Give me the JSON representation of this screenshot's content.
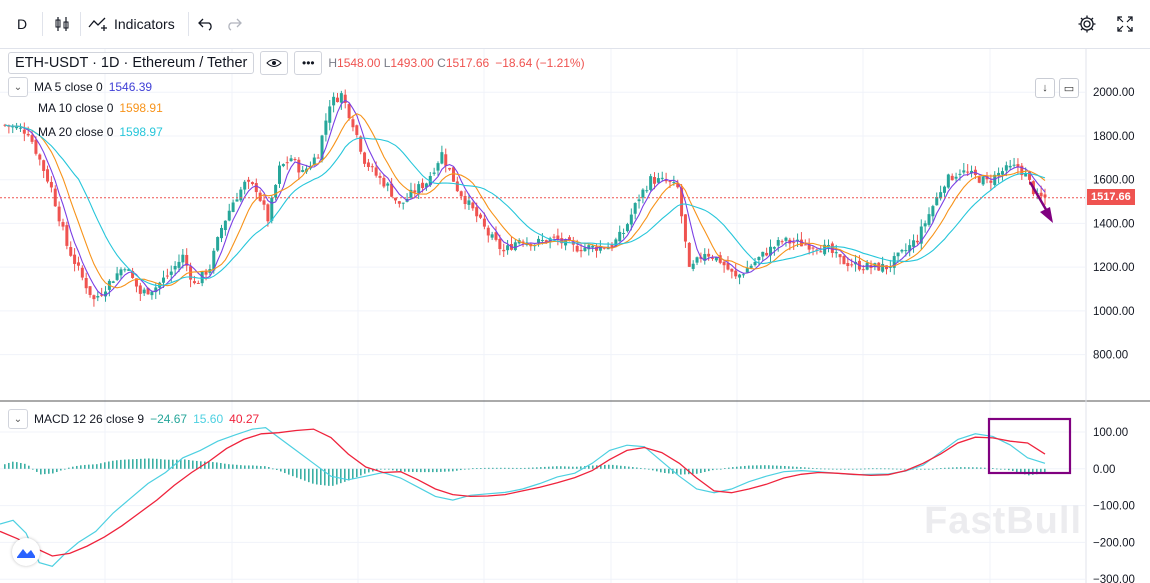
{
  "toolbar": {
    "interval": "D",
    "indicators_label": "Indicators"
  },
  "header": {
    "symbol": "ETH-USDT · 1D · Ethereum / Tether",
    "ohlc": [
      {
        "label": "H",
        "value": "1548.00"
      },
      {
        "label": "L",
        "value": "1493.00"
      },
      {
        "label": "C",
        "value": "1517.66"
      }
    ],
    "change": "−18.64 (−1.21%)"
  },
  "legend": {
    "ma5": {
      "label": "MA 5 close 0",
      "value": "1546.39"
    },
    "ma10": {
      "label": "MA 10 close 0",
      "value": "1598.91"
    },
    "ma20": {
      "label": "MA 20 close 0",
      "value": "1598.97"
    },
    "macd": {
      "label": "MACD 12 26 close 9",
      "hist": "−24.67",
      "macd": "15.60",
      "signal": "40.27"
    }
  },
  "last_price_tag": "1517.66",
  "watermark": "FastBull",
  "colors": {
    "up": "#26a69a",
    "down": "#ef5350",
    "ma5": "#7b3fe4",
    "ma10": "#f7931a",
    "ma20": "#26c6da",
    "macd_line": "#4dd0e1",
    "signal_line": "#ef233c",
    "annotation": "#800080"
  },
  "chart_data": [
    {
      "type": "candlestick",
      "title": "ETH-USDT 1D",
      "y_ticks": [
        "2000.00",
        "1800.00",
        "1600.00",
        "1400.00",
        "1200.00",
        "1000.00",
        "800.00"
      ],
      "ylim": [
        780,
        2120
      ],
      "last_price": 1517.66,
      "close_path": [
        [
          0,
          1850
        ],
        [
          6,
          1820
        ],
        [
          12,
          1560
        ],
        [
          16,
          1300
        ],
        [
          20,
          1150
        ],
        [
          23,
          1050
        ],
        [
          27,
          1130
        ],
        [
          31,
          1210
        ],
        [
          35,
          1080
        ],
        [
          39,
          1110
        ],
        [
          43,
          1180
        ],
        [
          46,
          1250
        ],
        [
          49,
          1120
        ],
        [
          53,
          1200
        ],
        [
          56,
          1380
        ],
        [
          59,
          1500
        ],
        [
          62,
          1580
        ],
        [
          65,
          1560
        ],
        [
          68,
          1420
        ],
        [
          71,
          1650
        ],
        [
          74,
          1700
        ],
        [
          77,
          1630
        ],
        [
          81,
          1720
        ],
        [
          84,
          1950
        ],
        [
          87,
          1990
        ],
        [
          90,
          1860
        ],
        [
          93,
          1690
        ],
        [
          96,
          1620
        ],
        [
          99,
          1570
        ],
        [
          102,
          1480
        ],
        [
          106,
          1550
        ],
        [
          109,
          1590
        ],
        [
          113,
          1720
        ],
        [
          117,
          1560
        ],
        [
          121,
          1460
        ],
        [
          125,
          1350
        ],
        [
          129,
          1270
        ],
        [
          133,
          1330
        ],
        [
          137,
          1310
        ],
        [
          142,
          1330
        ],
        [
          147,
          1290
        ],
        [
          152,
          1290
        ],
        [
          157,
          1300
        ],
        [
          160,
          1360
        ],
        [
          164,
          1520
        ],
        [
          167,
          1600
        ],
        [
          171,
          1590
        ],
        [
          174,
          1560
        ],
        [
          177,
          1180
        ],
        [
          181,
          1270
        ],
        [
          185,
          1230
        ],
        [
          189,
          1150
        ],
        [
          193,
          1210
        ],
        [
          197,
          1270
        ],
        [
          201,
          1320
        ],
        [
          205,
          1310
        ],
        [
          209,
          1300
        ],
        [
          213,
          1280
        ],
        [
          216,
          1230
        ],
        [
          220,
          1210
        ],
        [
          224,
          1200
        ],
        [
          228,
          1200
        ],
        [
          232,
          1260
        ],
        [
          236,
          1330
        ],
        [
          240,
          1480
        ],
        [
          243,
          1590
        ],
        [
          247,
          1640
        ],
        [
          250,
          1620
        ],
        [
          254,
          1590
        ],
        [
          258,
          1640
        ],
        [
          262,
          1660
        ],
        [
          264,
          1620
        ],
        [
          267,
          1517
        ]
      ]
    },
    {
      "type": "macd",
      "y_ticks": [
        "100.00",
        "0.00",
        "−100.00",
        "−200.00",
        "−300.00"
      ],
      "ylim": [
        -300,
        135
      ],
      "macd_path": [
        [
          0,
          -150
        ],
        [
          3,
          -140
        ],
        [
          6,
          -175
        ],
        [
          9,
          -255
        ],
        [
          12,
          -265
        ],
        [
          15,
          -230
        ],
        [
          18,
          -200
        ],
        [
          22,
          -170
        ],
        [
          26,
          -120
        ],
        [
          30,
          -80
        ],
        [
          34,
          -40
        ],
        [
          38,
          -10
        ],
        [
          42,
          30
        ],
        [
          46,
          50
        ],
        [
          50,
          75
        ],
        [
          54,
          92
        ],
        [
          58,
          108
        ],
        [
          61,
          112
        ],
        [
          64,
          85
        ],
        [
          68,
          50
        ],
        [
          72,
          15
        ],
        [
          76,
          -20
        ],
        [
          80,
          -30
        ],
        [
          84,
          -20
        ],
        [
          88,
          -10
        ],
        [
          92,
          -25
        ],
        [
          96,
          -50
        ],
        [
          100,
          -75
        ],
        [
          104,
          -85
        ],
        [
          108,
          -72
        ],
        [
          112,
          -68
        ],
        [
          116,
          -64
        ],
        [
          120,
          -55
        ],
        [
          124,
          -40
        ],
        [
          128,
          -22
        ],
        [
          132,
          -12
        ],
        [
          136,
          15
        ],
        [
          140,
          50
        ],
        [
          144,
          64
        ],
        [
          148,
          60
        ],
        [
          152,
          20
        ],
        [
          156,
          -20
        ],
        [
          160,
          -55
        ],
        [
          164,
          -65
        ],
        [
          168,
          -55
        ],
        [
          172,
          -35
        ],
        [
          176,
          -20
        ],
        [
          180,
          -8
        ],
        [
          184,
          -5
        ],
        [
          188,
          -8
        ],
        [
          192,
          -12
        ],
        [
          196,
          -16
        ],
        [
          200,
          -15
        ],
        [
          204,
          -14
        ],
        [
          208,
          -6
        ],
        [
          212,
          10
        ],
        [
          216,
          45
        ],
        [
          220,
          80
        ],
        [
          224,
          95
        ],
        [
          228,
          88
        ],
        [
          232,
          65
        ],
        [
          236,
          30
        ],
        [
          240,
          15
        ]
      ],
      "signal_path": [
        [
          0,
          -170
        ],
        [
          4,
          -190
        ],
        [
          8,
          -215
        ],
        [
          12,
          -237
        ],
        [
          16,
          -230
        ],
        [
          20,
          -210
        ],
        [
          24,
          -185
        ],
        [
          28,
          -155
        ],
        [
          32,
          -120
        ],
        [
          36,
          -85
        ],
        [
          40,
          -45
        ],
        [
          44,
          -10
        ],
        [
          48,
          20
        ],
        [
          52,
          55
        ],
        [
          56,
          80
        ],
        [
          60,
          95
        ],
        [
          64,
          98
        ],
        [
          68,
          104
        ],
        [
          72,
          108
        ],
        [
          76,
          85
        ],
        [
          80,
          40
        ],
        [
          84,
          5
        ],
        [
          88,
          -10
        ],
        [
          92,
          -8
        ],
        [
          96,
          -30
        ],
        [
          100,
          -55
        ],
        [
          104,
          -70
        ],
        [
          108,
          -75
        ],
        [
          112,
          -74
        ],
        [
          116,
          -70
        ],
        [
          120,
          -60
        ],
        [
          124,
          -50
        ],
        [
          128,
          -38
        ],
        [
          132,
          -24
        ],
        [
          136,
          -5
        ],
        [
          140,
          25
        ],
        [
          144,
          50
        ],
        [
          148,
          58
        ],
        [
          152,
          44
        ],
        [
          156,
          15
        ],
        [
          160,
          -25
        ],
        [
          164,
          -60
        ],
        [
          168,
          -65
        ],
        [
          172,
          -55
        ],
        [
          176,
          -42
        ],
        [
          180,
          -25
        ],
        [
          184,
          -15
        ],
        [
          188,
          -10
        ],
        [
          192,
          -12
        ],
        [
          196,
          -15
        ],
        [
          200,
          -18
        ],
        [
          204,
          -16
        ],
        [
          208,
          -5
        ],
        [
          212,
          15
        ],
        [
          216,
          40
        ],
        [
          220,
          70
        ],
        [
          224,
          86
        ],
        [
          228,
          84
        ],
        [
          232,
          75
        ],
        [
          236,
          70
        ],
        [
          240,
          40
        ]
      ]
    }
  ]
}
